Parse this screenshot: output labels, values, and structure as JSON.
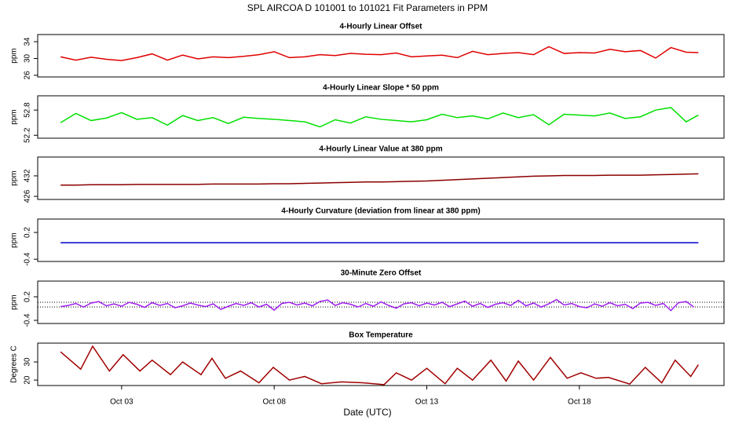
{
  "title": "SPL   AIRCOA D   101001 to 101021   Fit Parameters in PPM",
  "xlabel": "Date (UTC)",
  "chart_data": [
    {
      "type": "line",
      "title": "4-Hourly Linear Offset",
      "ylabel": "ppm",
      "color": "#e00000",
      "x": [
        1.0,
        1.5,
        2.0,
        2.5,
        3.0,
        3.5,
        4.0,
        4.5,
        5.0,
        5.5,
        6.0,
        6.5,
        7.0,
        7.5,
        8.0,
        8.5,
        9.0,
        9.5,
        10.0,
        10.5,
        11.0,
        11.5,
        12.0,
        12.5,
        13.0,
        13.5,
        14.0,
        14.5,
        15.0,
        15.5,
        16.0,
        16.5,
        17.0,
        17.5,
        18.0,
        18.5,
        19.0,
        19.5,
        20.0,
        20.5,
        21.0,
        21.5,
        21.9
      ],
      "values": [
        30.4,
        29.6,
        30.3,
        29.8,
        29.5,
        30.2,
        31.1,
        29.6,
        30.8,
        29.9,
        30.4,
        30.2,
        30.5,
        30.9,
        31.6,
        30.2,
        30.4,
        30.9,
        30.7,
        31.2,
        31.0,
        30.9,
        31.3,
        30.4,
        30.6,
        30.8,
        30.2,
        31.7,
        30.9,
        31.2,
        31.4,
        30.9,
        32.8,
        31.2,
        31.4,
        31.3,
        32.2,
        31.6,
        31.9,
        30.1,
        32.6,
        31.5,
        31.4
      ],
      "xlim": [
        0.25,
        22.74
      ],
      "ylim": [
        25.6,
        35.7
      ],
      "yticks": [
        26,
        30,
        34
      ]
    },
    {
      "type": "line",
      "title": "4-Hourly Linear Slope * 50 ppm",
      "ylabel": "ppm",
      "color": "#00e000",
      "x": [
        1.0,
        1.5,
        2.0,
        2.5,
        3.0,
        3.5,
        4.0,
        4.5,
        5.0,
        5.5,
        6.0,
        6.5,
        7.0,
        7.5,
        8.0,
        8.5,
        9.0,
        9.5,
        10.0,
        10.5,
        11.0,
        11.5,
        12.0,
        12.5,
        13.0,
        13.5,
        14.0,
        14.5,
        15.0,
        15.5,
        16.0,
        16.5,
        17.0,
        17.5,
        18.0,
        18.5,
        19.0,
        19.5,
        20.0,
        20.5,
        21.0,
        21.5,
        21.9
      ],
      "values": [
        52.5,
        52.72,
        52.55,
        52.61,
        52.74,
        52.58,
        52.62,
        52.44,
        52.67,
        52.55,
        52.62,
        52.48,
        52.63,
        52.6,
        52.58,
        52.55,
        52.52,
        52.4,
        52.57,
        52.49,
        52.64,
        52.58,
        52.55,
        52.52,
        52.57,
        52.7,
        52.62,
        52.66,
        52.59,
        52.73,
        52.62,
        52.69,
        52.45,
        52.7,
        52.68,
        52.66,
        52.73,
        52.6,
        52.64,
        52.8,
        52.86,
        52.52,
        52.68
      ],
      "xlim": [
        0.25,
        22.74
      ],
      "ylim": [
        52.13,
        53.14
      ],
      "yticks": [
        52.2,
        52.8
      ]
    },
    {
      "type": "line",
      "title": "4-Hourly Linear Value at 380 ppm",
      "ylabel": "ppm",
      "color": "#8b0000",
      "x": [
        1.0,
        1.5,
        2.0,
        2.5,
        3.0,
        3.5,
        4.0,
        4.5,
        5.0,
        5.5,
        6.0,
        6.5,
        7.0,
        7.5,
        8.0,
        8.5,
        9.0,
        9.5,
        10.0,
        10.5,
        11.0,
        11.5,
        12.0,
        12.5,
        13.0,
        13.5,
        14.0,
        14.5,
        15.0,
        15.5,
        16.0,
        16.5,
        17.0,
        17.5,
        18.0,
        18.5,
        19.0,
        19.5,
        20.0,
        20.5,
        21.0,
        21.5,
        21.9
      ],
      "values": [
        429.3,
        429.3,
        429.4,
        429.4,
        429.4,
        429.5,
        429.5,
        429.5,
        429.5,
        429.5,
        429.6,
        429.6,
        429.6,
        429.6,
        429.7,
        429.7,
        429.8,
        429.9,
        430.0,
        430.1,
        430.2,
        430.2,
        430.3,
        430.4,
        430.5,
        430.7,
        430.9,
        431.1,
        431.3,
        431.5,
        431.7,
        431.9,
        432.0,
        432.1,
        432.1,
        432.1,
        432.2,
        432.2,
        432.2,
        432.3,
        432.4,
        432.5,
        432.6
      ],
      "xlim": [
        0.25,
        22.74
      ],
      "ylim": [
        425.1,
        437.5
      ],
      "yticks": [
        426,
        432
      ]
    },
    {
      "type": "line",
      "title": "4-Hourly Curvature (deviation from linear at 380 ppm)",
      "ylabel": "ppm",
      "color": "#0000cc",
      "x": [
        1.0,
        1.5,
        2.0,
        2.5,
        3.0,
        3.5,
        4.0,
        4.5,
        5.0,
        5.5,
        6.0,
        6.5,
        7.0,
        7.5,
        8.0,
        8.5,
        9.0,
        9.5,
        10.0,
        10.5,
        11.0,
        11.5,
        12.0,
        12.5,
        13.0,
        13.5,
        14.0,
        14.5,
        15.0,
        15.5,
        16.0,
        16.5,
        17.0,
        17.5,
        18.0,
        18.5,
        19.0,
        19.5,
        20.0,
        20.5,
        21.0,
        21.5,
        21.9
      ],
      "values": [
        -0.03,
        -0.03,
        -0.03,
        -0.03,
        -0.03,
        -0.03,
        -0.03,
        -0.03,
        -0.03,
        -0.03,
        -0.03,
        -0.03,
        -0.03,
        -0.03,
        -0.03,
        -0.03,
        -0.03,
        -0.03,
        -0.03,
        -0.03,
        -0.03,
        -0.03,
        -0.03,
        -0.03,
        -0.03,
        -0.03,
        -0.03,
        -0.03,
        -0.03,
        -0.03,
        -0.03,
        -0.03,
        -0.03,
        -0.03,
        -0.03,
        -0.03,
        -0.03,
        -0.03,
        -0.03,
        -0.03,
        -0.03,
        -0.03,
        -0.03
      ],
      "xlim": [
        0.25,
        22.74
      ],
      "ylim": [
        -0.45,
        0.5
      ],
      "yticks": [
        -0.4,
        0.2
      ]
    },
    {
      "type": "line",
      "title": "30-Minute Zero Offset",
      "ylabel": "ppm",
      "color": "#a020f0",
      "x": [
        1.0,
        1.25,
        1.5,
        1.75,
        2.0,
        2.25,
        2.5,
        2.75,
        3.0,
        3.25,
        3.5,
        3.75,
        4.0,
        4.25,
        4.5,
        4.75,
        5.0,
        5.25,
        5.5,
        5.75,
        6.0,
        6.25,
        6.5,
        6.75,
        7.0,
        7.25,
        7.5,
        7.75,
        8.0,
        8.25,
        8.5,
        8.75,
        9.0,
        9.25,
        9.5,
        9.75,
        10.0,
        10.25,
        10.5,
        10.75,
        11.0,
        11.25,
        11.5,
        11.75,
        12.0,
        12.25,
        12.5,
        12.75,
        13.0,
        13.25,
        13.5,
        13.75,
        14.0,
        14.25,
        14.5,
        14.75,
        15.0,
        15.25,
        15.5,
        15.75,
        16.0,
        16.25,
        16.5,
        16.75,
        17.0,
        17.25,
        17.5,
        17.75,
        18.0,
        18.25,
        18.5,
        18.75,
        19.0,
        19.25,
        19.5,
        19.75,
        20.0,
        20.25,
        20.5,
        20.75,
        21.0,
        21.25,
        21.5,
        21.75
      ],
      "values": [
        -0.05,
        -0.02,
        0.03,
        -0.06,
        0.04,
        0.08,
        -0.03,
        0.02,
        -0.04,
        0.06,
        0.01,
        -0.07,
        0.05,
        -0.02,
        0.03,
        -0.08,
        -0.03,
        0.04,
        -0.01,
        -0.05,
        0.02,
        -0.12,
        -0.04,
        0.03,
        -0.02,
        0.05,
        -0.06,
        0.01,
        -0.14,
        0.03,
        0.06,
        -0.01,
        0.04,
        -0.03,
        0.08,
        0.12,
        -0.02,
        0.05,
        0.01,
        -0.06,
        0.03,
        -0.04,
        0.07,
        -0.02,
        -0.09,
        0.02,
        0.05,
        -0.03,
        0.04,
        -0.01,
        0.06,
        -0.05,
        0.02,
        0.09,
        -0.04,
        0.03,
        -0.07,
        0.01,
        0.05,
        -0.02,
        0.11,
        -0.03,
        0.04,
        -0.06,
        0.02,
        0.13,
        -0.01,
        0.03,
        -0.05,
        -0.08,
        0.02,
        -0.04,
        0.05,
        -0.03,
        0.01,
        -0.1,
        0.04,
        0.06,
        -0.02,
        0.03,
        -0.15,
        0.05,
        0.08,
        -0.06
      ],
      "hlines": [
        0.06,
        -0.06
      ],
      "xlim": [
        0.25,
        22.74
      ],
      "ylim": [
        -0.48,
        0.6
      ],
      "yticks": [
        -0.4,
        0.2
      ]
    },
    {
      "type": "line",
      "title": "Box Temperature",
      "ylabel": "Degrees C",
      "color": "#a00000",
      "x": [
        1.0,
        1.66,
        2.05,
        2.6,
        3.05,
        3.6,
        4.0,
        4.6,
        5.0,
        5.6,
        5.96,
        6.4,
        6.9,
        7.5,
        7.97,
        8.5,
        9.0,
        9.55,
        10.2,
        10.9,
        11.6,
        12.0,
        12.5,
        13.0,
        13.6,
        14.0,
        14.5,
        15.1,
        15.6,
        16.0,
        16.5,
        17.05,
        17.6,
        18.05,
        18.55,
        18.95,
        19.65,
        20.16,
        20.7,
        21.14,
        21.65,
        21.9
      ],
      "values": [
        35.6,
        26,
        38.7,
        25,
        34,
        25,
        31,
        23,
        30,
        23,
        32,
        21,
        25,
        18.5,
        27,
        20,
        22,
        18,
        19,
        18.5,
        17.5,
        24,
        20,
        26.5,
        18,
        26.5,
        20,
        31,
        19.5,
        30.5,
        20,
        32.5,
        21,
        24,
        21,
        21.5,
        17.8,
        27,
        18.5,
        31,
        22,
        28.5
      ],
      "xlim": [
        0.25,
        22.74
      ],
      "ylim": [
        17,
        40.4
      ],
      "yticks": [
        20,
        30
      ],
      "xticks": [
        {
          "value": 3,
          "label": "Oct 03"
        },
        {
          "value": 8,
          "label": "Oct 08"
        },
        {
          "value": 13,
          "label": "Oct 13"
        },
        {
          "value": 18,
          "label": "Oct 18"
        }
      ]
    }
  ]
}
